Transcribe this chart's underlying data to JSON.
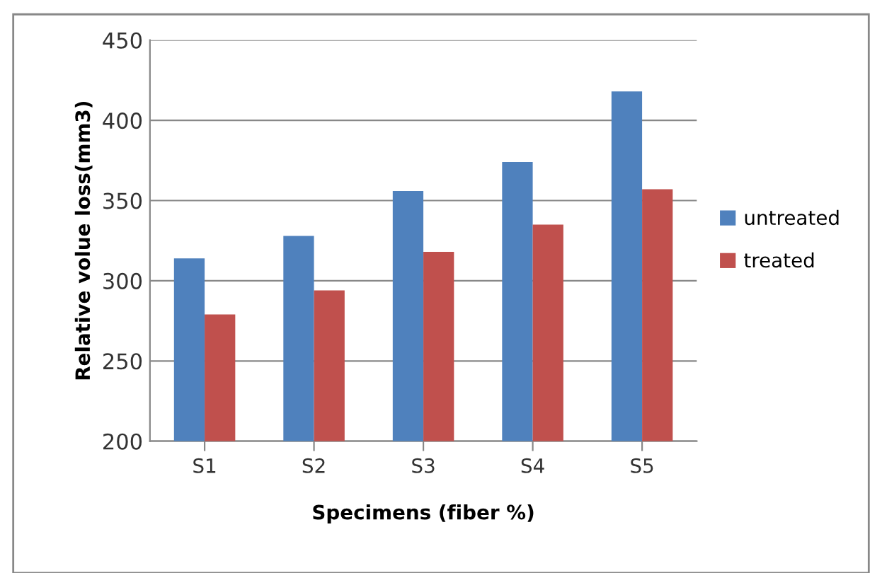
{
  "chart_data": {
    "type": "bar",
    "xlabel": "Specimens (fiber %)",
    "ylabel": "Relative volue loss(mm3)",
    "categories": [
      "S1",
      "S2",
      "S3",
      "S4",
      "S5"
    ],
    "series": [
      {
        "name": "untreated",
        "color": "#4f81bd",
        "values": [
          314,
          328,
          356,
          374,
          418
        ]
      },
      {
        "name": "treated",
        "color": "#c0504d",
        "values": [
          279,
          294,
          318,
          335,
          357
        ]
      }
    ],
    "ylim": [
      200,
      450
    ],
    "yticks": [
      200,
      250,
      300,
      350,
      400,
      450
    ],
    "grid": "y",
    "legend": "right"
  }
}
